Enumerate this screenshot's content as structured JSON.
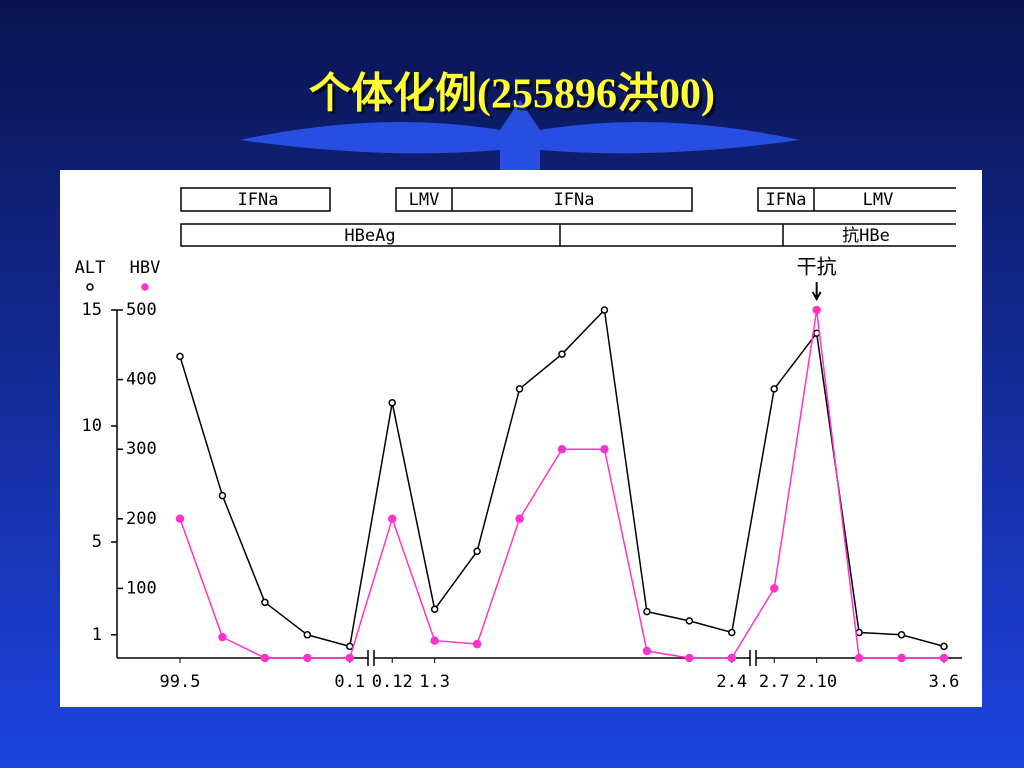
{
  "slide_title": "个体化例(255896洪00)",
  "timeline": {
    "row1": [
      "IFNa",
      "LMV",
      "IFNa",
      "IFNa",
      "LMV"
    ],
    "row2": [
      "HBeAg",
      "抗HBe"
    ]
  },
  "chart_data": {
    "type": "line",
    "categories": [
      "99.5",
      null,
      null,
      null,
      "0.1",
      "0.12",
      "1.3",
      null,
      null,
      null,
      null,
      null,
      null,
      "2.4",
      "2.7",
      "2.10",
      null,
      null,
      "3.6"
    ],
    "series": [
      {
        "name": "ALT",
        "color": "#000000",
        "axis": "y",
        "values": [
          13,
          7,
          2.4,
          1,
          0.5,
          11,
          2.1,
          4.6,
          11.6,
          13.1,
          15,
          2,
          1.6,
          1.1,
          11.6,
          14,
          1.1,
          1,
          0.5
        ]
      },
      {
        "name": "HBV",
        "color": "#ff33cc",
        "axis": "y2",
        "values": [
          200,
          30,
          0,
          0,
          0,
          200,
          25,
          20,
          200,
          300,
          300,
          10,
          0,
          0,
          100,
          500,
          0,
          0,
          0
        ]
      }
    ],
    "ylim": [
      0,
      15
    ],
    "yticks": [
      1,
      5,
      10,
      15
    ],
    "y2lim": [
      0,
      500
    ],
    "y2ticks": [
      100,
      200,
      300,
      400,
      500
    ],
    "annotation": "干抗"
  }
}
